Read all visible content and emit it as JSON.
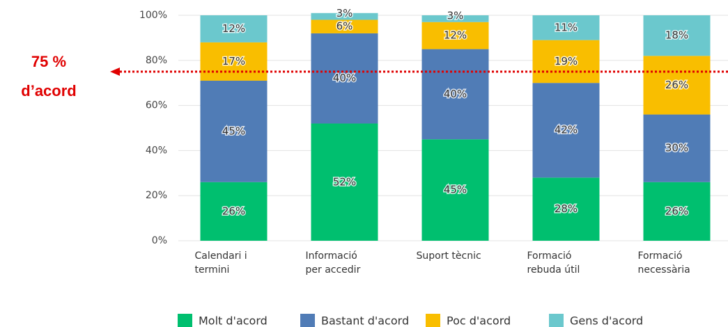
{
  "chart_data": {
    "type": "stacked_bar",
    "categories": [
      "Calendari i\ntermini",
      "Informació\nper accedir",
      "Suport tècnic",
      "Formació\nrebuda útil",
      "Formació\nnecessària"
    ],
    "series": [
      {
        "name": "Molt d'acord",
        "color": "#00bf6f",
        "values": [
          26,
          52,
          45,
          28,
          26
        ],
        "value_labels": [
          "26%",
          "52%",
          "45%",
          "28%",
          "26%"
        ]
      },
      {
        "name": "Bastant d'acord",
        "color": "#507cb6",
        "values": [
          45,
          40,
          40,
          42,
          30
        ],
        "value_labels": [
          "45%",
          "40%",
          "40%",
          "42%",
          "30%"
        ]
      },
      {
        "name": "Poc d'acord",
        "color": "#f9be00",
        "values": [
          17,
          6,
          12,
          19,
          26
        ],
        "value_labels": [
          "17%",
          "6%",
          "12%",
          "19%",
          "26%"
        ]
      },
      {
        "name": "Gens d'acord",
        "color": "#6bc8cd",
        "values": [
          12,
          3,
          3,
          11,
          18
        ],
        "value_labels": [
          "12%",
          "3%",
          "3%",
          "11%",
          "18%"
        ]
      }
    ],
    "ylim": [
      0,
      100
    ],
    "yticks": [
      {
        "value": 0,
        "label": "0%"
      },
      {
        "value": 20,
        "label": "20%"
      },
      {
        "value": 40,
        "label": "40%"
      },
      {
        "value": 60,
        "label": "60%"
      },
      {
        "value": 80,
        "label": "80%"
      },
      {
        "value": 100,
        "label": "100%"
      }
    ],
    "grid": true,
    "annotation": {
      "text": "75 %\nd’acord",
      "value": 75,
      "color": "#e00000"
    }
  }
}
